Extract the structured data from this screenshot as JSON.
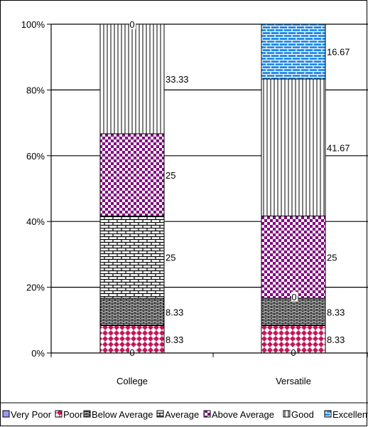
{
  "chart_data": {
    "type": "bar",
    "stacked": true,
    "percent_stacked": true,
    "categories": [
      "College",
      "Versatile"
    ],
    "ylim": [
      0,
      100
    ],
    "yticks": [
      "0%",
      "20%",
      "40%",
      "60%",
      "80%",
      "100%"
    ],
    "grid": true,
    "legend_position": "bottom",
    "series": [
      {
        "name": "Very Poor",
        "values": [
          0,
          0
        ],
        "labels": [
          "0",
          "0"
        ],
        "color": "#9999ff",
        "pattern": "solid"
      },
      {
        "name": "Poor",
        "values": [
          8.33,
          8.33
        ],
        "labels": [
          "8.33",
          "8.33"
        ],
        "color": "#c2185b",
        "pattern": "diamond"
      },
      {
        "name": "Below Average",
        "values": [
          8.33,
          8.33
        ],
        "labels": [
          "8.33",
          "8.33"
        ],
        "color": "#000000",
        "pattern": "brick"
      },
      {
        "name": "Average",
        "values": [
          25,
          0
        ],
        "labels": [
          "25",
          "0"
        ],
        "color": "#000000",
        "pattern": "brick-open"
      },
      {
        "name": "Above Average",
        "values": [
          25,
          25
        ],
        "labels": [
          "25",
          "25"
        ],
        "color": "#800080",
        "pattern": "checker"
      },
      {
        "name": "Good",
        "values": [
          33.33,
          41.67
        ],
        "labels": [
          "33.33",
          "41.67"
        ],
        "color": "#000000",
        "pattern": "vertical"
      },
      {
        "name": "Excellent",
        "values": [
          0,
          16.67
        ],
        "labels": [
          "0",
          "16.67"
        ],
        "color": "#1e88e5",
        "pattern": "brick-blue"
      }
    ]
  }
}
